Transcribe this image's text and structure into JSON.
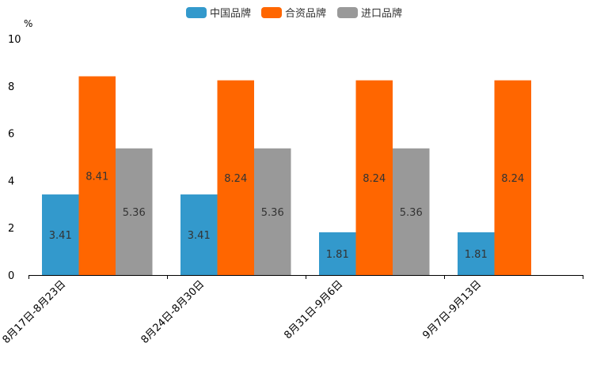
{
  "chart_data": {
    "type": "bar",
    "title": "",
    "xlabel": "",
    "ylabel": "%",
    "ylim": [
      0,
      10
    ],
    "yticks": [
      0,
      2,
      4,
      6,
      8,
      10
    ],
    "grid": false,
    "legend_position": "top-center",
    "categories": [
      "8月17日-8月23日",
      "8月24日-8月30日",
      "8月31日-9月6日",
      "9月7日-9月13日"
    ],
    "series": [
      {
        "name": "中国品牌",
        "color": "#3399cc",
        "values": [
          3.41,
          3.41,
          1.81,
          1.81
        ]
      },
      {
        "name": "合资品牌",
        "color": "#ff6600",
        "values": [
          8.41,
          8.24,
          8.24,
          8.24
        ]
      },
      {
        "name": "进口品牌",
        "color": "#999999",
        "values": [
          5.36,
          5.36,
          5.36,
          null
        ]
      }
    ],
    "data_label_color": "#333333"
  }
}
